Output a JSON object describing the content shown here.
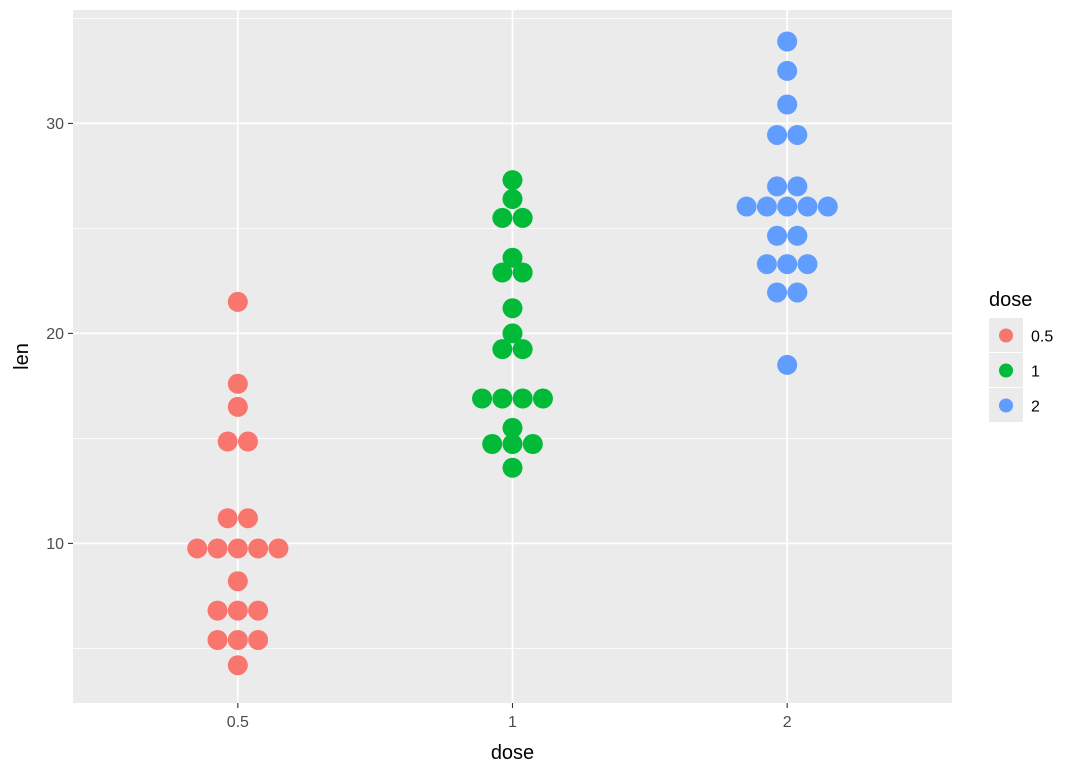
{
  "chart_data": {
    "type": "scatter",
    "subtype": "dotplot",
    "title": "",
    "xlabel": "dose",
    "ylabel": "len",
    "categories": [
      "0.5",
      "1",
      "2"
    ],
    "y_ticks": [
      "10",
      "20",
      "30"
    ],
    "y_tick_values": [
      10,
      20,
      30
    ],
    "ylim": [
      2.4,
      35.4
    ],
    "grid": true,
    "legend": {
      "title": "dose",
      "position": "right",
      "entries": [
        "0.5",
        "1",
        "2"
      ]
    },
    "colors": {
      "0.5": "#F8766D",
      "1": "#00BA38",
      "2": "#619CFF"
    },
    "panel_background": "#EBEBEB",
    "grid_color": "#FFFFFF",
    "series": [
      {
        "name": "0.5",
        "values": [
          4.2,
          5.2,
          5.8,
          6.4,
          7.0,
          10.0,
          11.2,
          11.2,
          5.2,
          7.0,
          15.2,
          21.5,
          17.6,
          9.7,
          14.5,
          10.0,
          8.2,
          9.4,
          16.5,
          9.7
        ]
      },
      {
        "name": "1",
        "values": [
          16.5,
          16.5,
          15.2,
          17.3,
          22.5,
          17.3,
          13.6,
          14.5,
          18.8,
          15.5,
          19.7,
          23.3,
          23.6,
          26.4,
          20.0,
          25.2,
          25.8,
          21.2,
          14.5,
          27.3
        ]
      },
      {
        "name": "2",
        "values": [
          23.6,
          18.5,
          33.9,
          25.5,
          26.4,
          32.5,
          26.7,
          21.5,
          23.3,
          29.5,
          25.5,
          26.4,
          22.4,
          24.5,
          24.8,
          30.9,
          26.4,
          27.3,
          29.4,
          23.0
        ]
      }
    ]
  }
}
